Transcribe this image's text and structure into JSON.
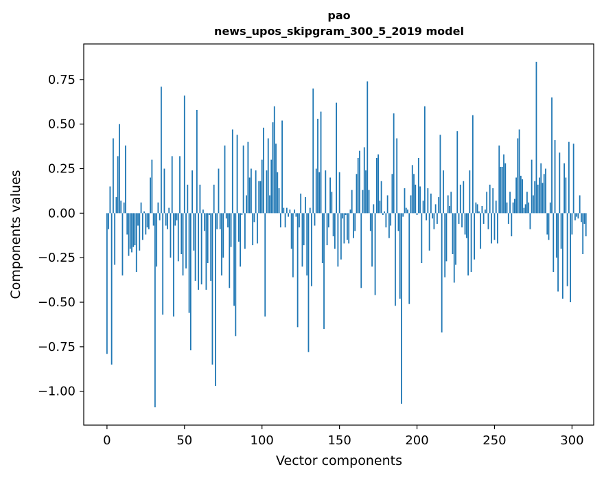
{
  "chart_data": {
    "type": "bar",
    "title": "pao",
    "subtitle": "news_upos_skipgram_300_5_2019 model",
    "xlabel": "Vector components",
    "ylabel": "Components values",
    "xlim": [
      -15,
      314
    ],
    "ylim": [
      -1.19,
      0.95
    ],
    "xticks": [
      0,
      50,
      100,
      150,
      200,
      250,
      300
    ],
    "xtick_labels": [
      "0",
      "50",
      "100",
      "150",
      "200",
      "250",
      "300"
    ],
    "yticks": [
      -1.0,
      -0.75,
      -0.5,
      -0.25,
      0.0,
      0.25,
      0.5,
      0.75
    ],
    "ytick_labels": [
      "−1.00",
      "−0.75",
      "−0.50",
      "−0.25",
      "0.00",
      "0.25",
      "0.50",
      "0.75"
    ],
    "bar_color": "#1f77b4",
    "grid": false,
    "series": [
      {
        "name": "pao",
        "values": [
          -0.79,
          -0.09,
          0.15,
          -0.85,
          0.42,
          -0.29,
          0.09,
          0.32,
          0.5,
          0.07,
          -0.35,
          0.06,
          0.38,
          -0.12,
          -0.24,
          -0.2,
          -0.22,
          -0.19,
          -0.18,
          -0.33,
          -0.07,
          -0.21,
          0.06,
          -0.15,
          0.01,
          -0.12,
          -0.08,
          -0.09,
          0.2,
          0.3,
          -0.07,
          -1.09,
          -0.3,
          0.06,
          -0.04,
          0.71,
          -0.57,
          0.25,
          -0.07,
          -0.09,
          0.03,
          -0.25,
          0.32,
          -0.58,
          -0.07,
          -0.04,
          -0.27,
          0.32,
          -0.23,
          -0.35,
          0.66,
          -0.31,
          0.16,
          -0.56,
          -0.77,
          0.24,
          -0.21,
          -0.38,
          0.58,
          -0.43,
          0.16,
          -0.4,
          0.02,
          -0.1,
          -0.43,
          -0.28,
          -0.01,
          -0.38,
          -0.85,
          0.16,
          -0.97,
          -0.09,
          0.25,
          -0.09,
          -0.35,
          -0.25,
          0.38,
          -0.03,
          -0.08,
          -0.42,
          -0.19,
          0.47,
          -0.52,
          -0.69,
          0.44,
          -0.16,
          -0.3,
          -0.01,
          0.38,
          -0.2,
          0.1,
          0.4,
          0.2,
          0.25,
          -0.18,
          -0.05,
          0.24,
          -0.17,
          0.18,
          0.18,
          0.3,
          0.48,
          -0.58,
          0.24,
          0.42,
          0.1,
          0.3,
          0.51,
          0.6,
          0.39,
          0.23,
          0.14,
          -0.08,
          0.52,
          0.03,
          -0.08,
          0.03,
          -0.02,
          0.02,
          -0.2,
          -0.36,
          0.02,
          -0.02,
          -0.64,
          -0.08,
          0.11,
          -0.3,
          -0.18,
          0.09,
          -0.35,
          -0.78,
          0.03,
          -0.41,
          0.7,
          -0.07,
          0.25,
          0.53,
          0.23,
          0.57,
          -0.28,
          -0.65,
          0.24,
          -0.18,
          -0.08,
          0.2,
          0.12,
          -0.13,
          -0.2,
          0.62,
          -0.3,
          0.23,
          -0.26,
          -0.03,
          -0.17,
          -0.01,
          -0.15,
          -0.17,
          0.02,
          0.13,
          -0.14,
          -0.1,
          0.22,
          0.31,
          0.35,
          -0.42,
          0.13,
          0.37,
          0.24,
          0.74,
          0.13,
          -0.1,
          -0.3,
          0.05,
          -0.46,
          0.31,
          0.33,
          0.07,
          0.18,
          -0.01,
          0.01,
          -0.08,
          0.1,
          -0.14,
          -0.07,
          0.22,
          0.56,
          -0.52,
          0.42,
          -0.1,
          -0.48,
          -1.07,
          -0.02,
          0.14,
          0.03,
          0.02,
          -0.51,
          0.1,
          0.27,
          0.22,
          0.16,
          -0.01,
          0.31,
          0.15,
          -0.28,
          0.07,
          0.6,
          -0.04,
          0.14,
          -0.21,
          0.11,
          -0.03,
          -0.09,
          0.05,
          -0.06,
          0.09,
          0.44,
          -0.67,
          0.24,
          -0.36,
          -0.27,
          0.1,
          0.04,
          0.12,
          -0.23,
          -0.39,
          -0.29,
          0.46,
          -0.06,
          0.16,
          -0.08,
          0.18,
          -0.12,
          -0.14,
          -0.35,
          0.24,
          -0.33,
          0.55,
          -0.26,
          0.06,
          0.05,
          0.01,
          -0.2,
          0.04,
          -0.06,
          0.02,
          0.12,
          -0.09,
          0.16,
          -0.17,
          0.14,
          -0.15,
          0.07,
          -0.17,
          0.38,
          0.26,
          0.26,
          0.33,
          0.28,
          0.06,
          -0.06,
          0.12,
          -0.13,
          0.06,
          0.08,
          0.2,
          0.42,
          0.47,
          0.21,
          0.19,
          0.03,
          0.05,
          0.12,
          0.06,
          -0.09,
          0.3,
          0.1,
          0.18,
          0.85,
          0.16,
          0.2,
          0.28,
          0.17,
          0.22,
          0.25,
          -0.12,
          -0.15,
          0.06,
          0.65,
          -0.33,
          0.41,
          -0.25,
          -0.44,
          0.34,
          -0.2,
          -0.48,
          0.28,
          0.2,
          -0.41,
          0.4,
          -0.5,
          -0.12,
          0.39,
          -0.04,
          -0.02,
          -0.03,
          0.1,
          -0.05,
          -0.23,
          -0.06,
          -0.13
        ]
      }
    ]
  }
}
